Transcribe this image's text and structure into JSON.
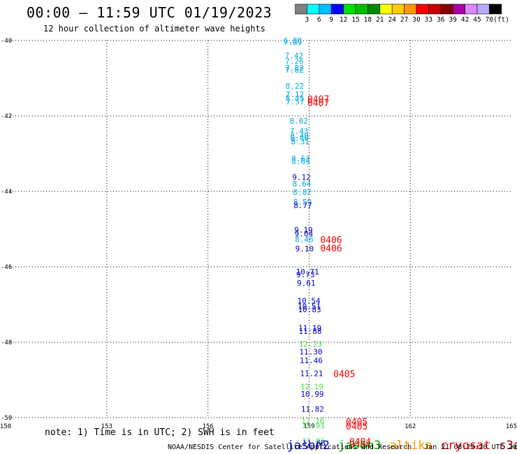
{
  "header": {
    "title": "00:00 — 11:59 UTC 01/19/2023",
    "subtitle": "12 hour collection of altimeter wave heights"
  },
  "colorbar": {
    "unit": "(ft)",
    "ticks": [
      "3",
      "6",
      "9",
      "12",
      "15",
      "18",
      "21",
      "24",
      "27",
      "30",
      "33",
      "36",
      "39",
      "42",
      "45",
      "70"
    ],
    "colors": [
      "#808080",
      "#00ffff",
      "#00bbff",
      "#0000ff",
      "#00dd00",
      "#00bb00",
      "#008800",
      "#ffff00",
      "#ffcc00",
      "#ff9900",
      "#ff0000",
      "#cc0000",
      "#880000",
      "#aa00aa",
      "#dd88ff",
      "#bbaaff",
      "#000000"
    ]
  },
  "footer": {
    "note": "note: 1) Time is in UTC; 2) SWH is in feet",
    "legend": [
      {
        "label": "jason2",
        "color": "#0000cc"
      },
      {
        "label": "jason3",
        "color": "#00aa00"
      },
      {
        "label": "altika",
        "color": "#ff9900"
      },
      {
        "label": "cryosat",
        "color": "#ff0000"
      },
      {
        "label": "s3a",
        "color": "#880000"
      }
    ],
    "credit": "NOAA/NESDIS Center for Satellite Applications and Research   Jan 21 08:29:20 UTC 2023"
  },
  "chart_data": {
    "type": "scatter",
    "xlim": [
      150,
      165
    ],
    "ylim": [
      -50,
      -40
    ],
    "x_ticks": [
      "150",
      "153",
      "156",
      "159",
      "162",
      "165"
    ],
    "y_ticks": [
      "-40",
      "-42",
      "-44",
      "-46",
      "-48",
      "-50"
    ],
    "grid": true,
    "colors": {
      "cyan": "#00aadd",
      "blue": "#0000cc",
      "green": "#44dd44",
      "red": "#ff0000"
    },
    "points": [
      {
        "x": 158.24,
        "y": -40.0,
        "label": "6.88",
        "color": "cyan"
      },
      {
        "x": 158.24,
        "y": -40.05,
        "label": "7.09",
        "color": "cyan"
      },
      {
        "x": 158.28,
        "y": -40.4,
        "label": "7.42",
        "color": "cyan"
      },
      {
        "x": 158.29,
        "y": -40.55,
        "label": "7.26",
        "color": "cyan"
      },
      {
        "x": 158.29,
        "y": -40.72,
        "label": "7.82",
        "color": "cyan"
      },
      {
        "x": 158.29,
        "y": -40.78,
        "label": "7.82",
        "color": "cyan"
      },
      {
        "x": 158.3,
        "y": -41.2,
        "label": "8.22",
        "color": "cyan"
      },
      {
        "x": 158.3,
        "y": -41.43,
        "label": "7.12",
        "color": "cyan"
      },
      {
        "x": 158.3,
        "y": -41.53,
        "label": "8.45",
        "color": "cyan"
      },
      {
        "x": 158.31,
        "y": -41.62,
        "label": "7.57",
        "color": "cyan"
      },
      {
        "x": 158.42,
        "y": -42.13,
        "label": "8.02",
        "color": "cyan"
      },
      {
        "x": 158.43,
        "y": -42.4,
        "label": "7.43",
        "color": "cyan"
      },
      {
        "x": 158.44,
        "y": -42.52,
        "label": "8.40",
        "color": "cyan"
      },
      {
        "x": 158.44,
        "y": -42.58,
        "label": "8.40",
        "color": "cyan"
      },
      {
        "x": 158.46,
        "y": -42.68,
        "label": "8.31",
        "color": "cyan"
      },
      {
        "x": 158.48,
        "y": -43.13,
        "label": "8.63",
        "color": "cyan"
      },
      {
        "x": 158.48,
        "y": -43.2,
        "label": "8.69",
        "color": "cyan"
      },
      {
        "x": 158.5,
        "y": -43.62,
        "label": "9.12",
        "color": "blue"
      },
      {
        "x": 158.51,
        "y": -43.8,
        "label": "8.64",
        "color": "cyan"
      },
      {
        "x": 158.52,
        "y": -44.02,
        "label": "8.82",
        "color": "cyan"
      },
      {
        "x": 158.53,
        "y": -44.28,
        "label": "8.59",
        "color": "cyan"
      },
      {
        "x": 158.54,
        "y": -44.37,
        "label": "8.77",
        "color": "blue"
      },
      {
        "x": 158.56,
        "y": -45.02,
        "label": "9.19",
        "color": "blue"
      },
      {
        "x": 158.57,
        "y": -45.12,
        "label": "9.04",
        "color": "blue"
      },
      {
        "x": 158.58,
        "y": -45.27,
        "label": "8.46",
        "color": "cyan"
      },
      {
        "x": 158.59,
        "y": -45.52,
        "label": "9.10",
        "color": "blue"
      },
      {
        "x": 158.61,
        "y": -46.13,
        "label": "10.71",
        "color": "blue"
      },
      {
        "x": 158.62,
        "y": -46.2,
        "label": "9.73",
        "color": "blue"
      },
      {
        "x": 158.64,
        "y": -46.43,
        "label": "9.61",
        "color": "blue"
      },
      {
        "x": 158.65,
        "y": -46.9,
        "label": "10.54",
        "color": "blue"
      },
      {
        "x": 158.66,
        "y": -47.05,
        "label": "10.51",
        "color": "blue"
      },
      {
        "x": 158.67,
        "y": -47.13,
        "label": "10.83",
        "color": "blue"
      },
      {
        "x": 158.68,
        "y": -47.62,
        "label": "11.19",
        "color": "blue"
      },
      {
        "x": 158.69,
        "y": -47.7,
        "label": "11.88",
        "color": "blue"
      },
      {
        "x": 158.7,
        "y": -48.05,
        "label": "12.23",
        "color": "green"
      },
      {
        "x": 158.71,
        "y": -48.25,
        "label": "11.30",
        "color": "blue"
      },
      {
        "x": 158.72,
        "y": -48.48,
        "label": "11.46",
        "color": "blue"
      },
      {
        "x": 158.73,
        "y": -48.82,
        "label": "11.21",
        "color": "blue"
      },
      {
        "x": 158.74,
        "y": -49.18,
        "label": "12.19",
        "color": "green"
      },
      {
        "x": 158.75,
        "y": -49.37,
        "label": "10.99",
        "color": "blue"
      },
      {
        "x": 158.76,
        "y": -49.77,
        "label": "11.82",
        "color": "blue"
      },
      {
        "x": 158.77,
        "y": -50.08,
        "label": "12.16",
        "color": "green"
      },
      {
        "x": 158.78,
        "y": -50.2,
        "label": "12.93",
        "color": "green"
      },
      {
        "x": 158.79,
        "y": -50.62,
        "label": "11.96",
        "color": "green"
      },
      {
        "x": 158.8,
        "y": -50.68,
        "label": "11.66",
        "color": "blue"
      }
    ],
    "annotations": [
      {
        "x": 158.95,
        "y": -41.55,
        "label": "0407",
        "color": "red"
      },
      {
        "x": 158.95,
        "y": -41.65,
        "label": "0407",
        "color": "red"
      },
      {
        "x": 159.33,
        "y": -45.28,
        "label": "0406",
        "color": "red"
      },
      {
        "x": 159.33,
        "y": -45.5,
        "label": "0406",
        "color": "red"
      },
      {
        "x": 159.72,
        "y": -48.83,
        "label": "0405",
        "color": "red"
      },
      {
        "x": 160.09,
        "y": -50.1,
        "label": "0405",
        "color": "red"
      },
      {
        "x": 160.09,
        "y": -50.22,
        "label": "0405",
        "color": "red"
      },
      {
        "x": 160.19,
        "y": -50.63,
        "label": "0404",
        "color": "red"
      },
      {
        "x": 160.19,
        "y": -50.7,
        "label": "0404",
        "color": "red"
      }
    ]
  }
}
